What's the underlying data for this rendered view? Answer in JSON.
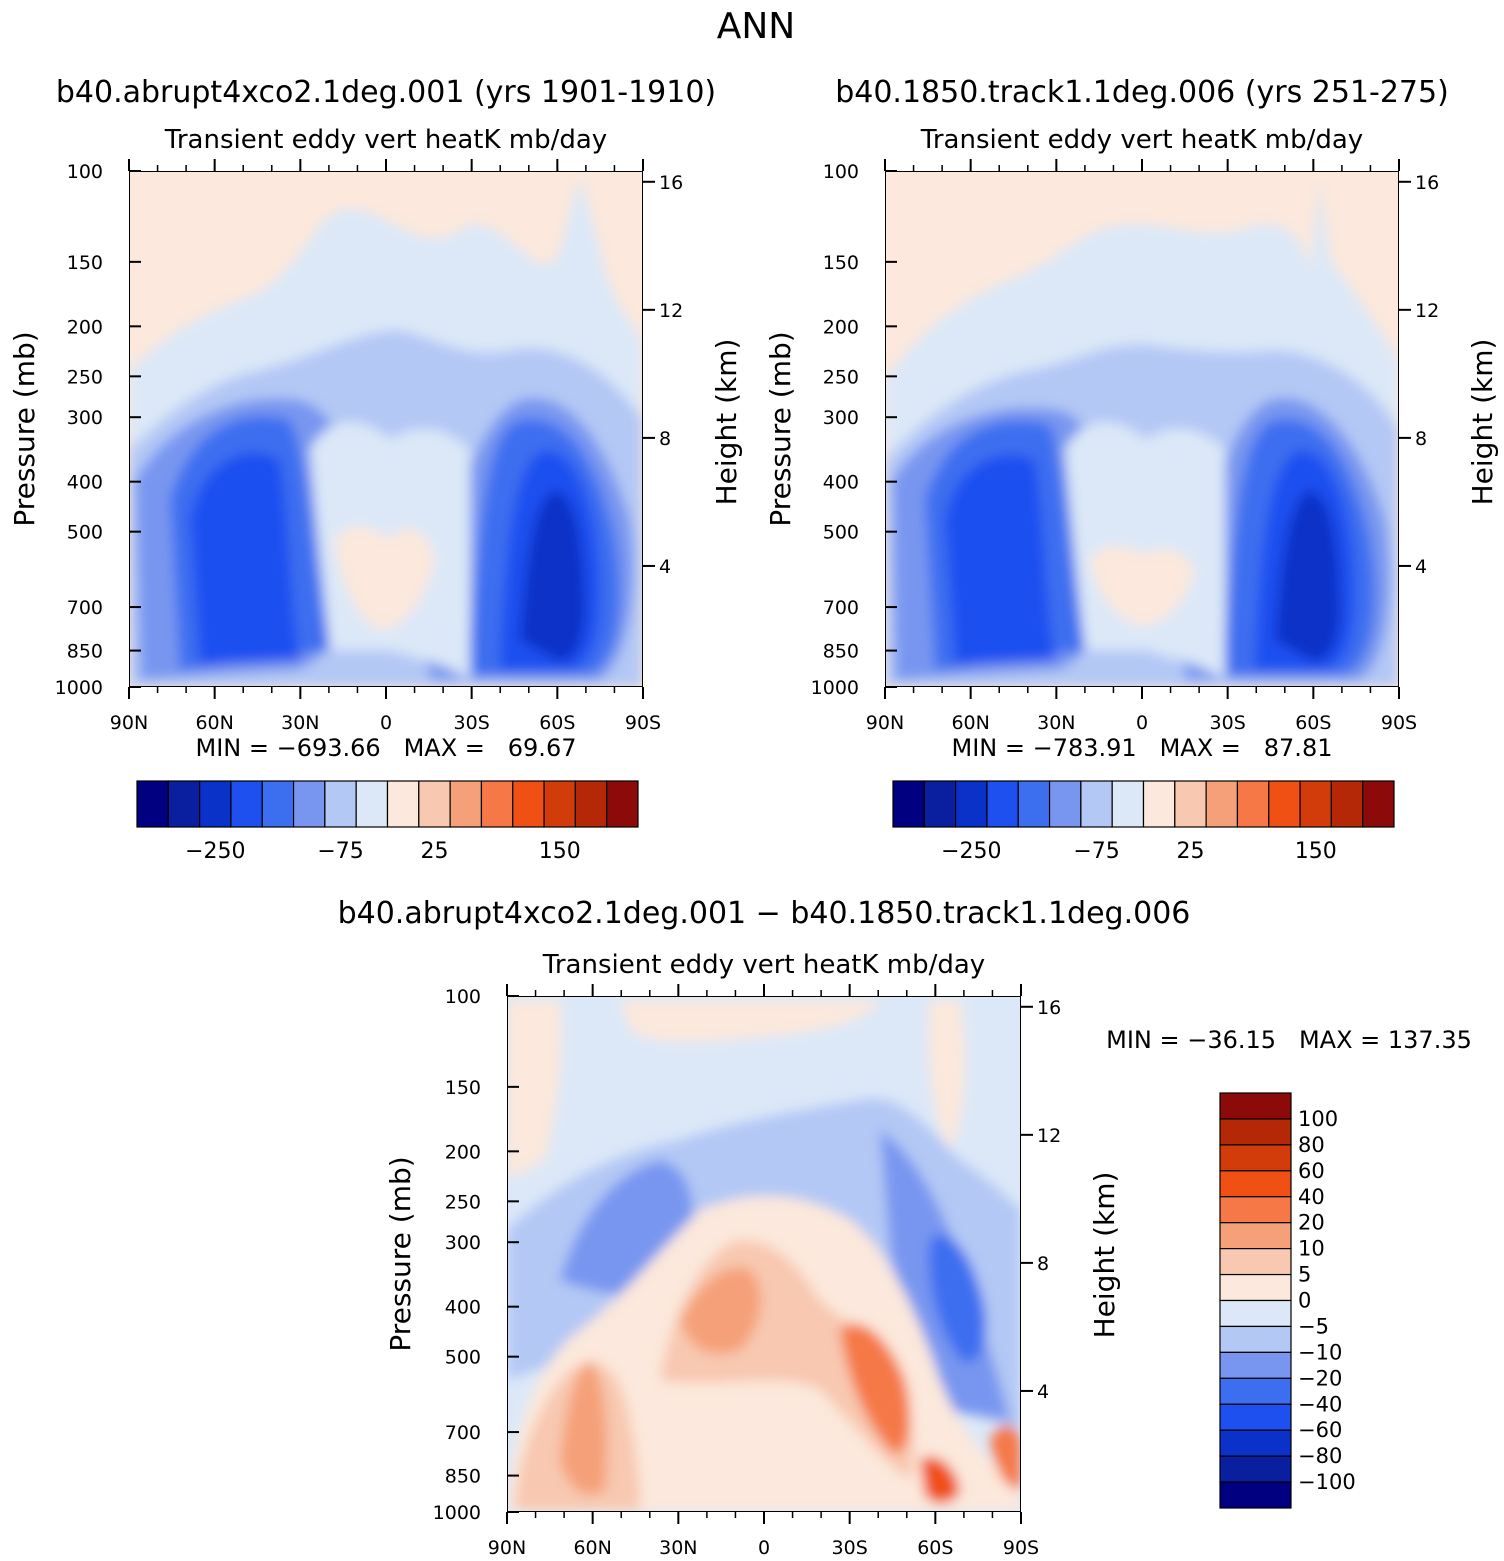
{
  "title": "ANN",
  "panels": [
    {
      "id": "p1",
      "case": "b40.abrupt4xco2.1deg.001 (yrs 1901-1910)",
      "variable": "Transient eddy vert heatK mb/day",
      "stats": "MIN = −693.66   MAX =   69.67",
      "min": -693.66,
      "max": 69.67
    },
    {
      "id": "p2",
      "case": "b40.1850.track1.1deg.006 (yrs 251-275)",
      "variable": "Transient eddy vert heatK mb/day",
      "stats": "MIN = −783.91   MAX =   87.81",
      "min": -783.91,
      "max": 87.81
    },
    {
      "id": "p3",
      "case": "b40.abrupt4xco2.1deg.001 − b40.1850.track1.1deg.006",
      "variable": "Transient eddy vert heatK mb/day",
      "stats": "MIN = −36.15   MAX = 137.35",
      "min": -36.15,
      "max": 137.35
    }
  ],
  "axes": {
    "ylabel": "Pressure (mb)",
    "y2label": "Height (km)",
    "pressure_ticks": [
      "100",
      "150",
      "200",
      "250",
      "300",
      "400",
      "500",
      "700",
      "850",
      "1000"
    ],
    "pressure_values": [
      100,
      150,
      200,
      250,
      300,
      400,
      500,
      700,
      850,
      1000
    ],
    "height_ticks": [
      "16",
      "12",
      "8",
      "4"
    ],
    "height_values": [
      16,
      12,
      8,
      4
    ],
    "lat_ticks": [
      "90N",
      "60N",
      "30N",
      "0",
      "30S",
      "60S",
      "90S"
    ],
    "lat_values": [
      90,
      60,
      30,
      0,
      -30,
      -60,
      -90
    ]
  },
  "colorbar_main": {
    "colors": [
      "#000080",
      "#0A1EA0",
      "#0A32C8",
      "#1E50F0",
      "#3C6EF0",
      "#7896F0",
      "#B4C8F5",
      "#DCE8F8",
      "#FCE8DC",
      "#F8C8B0",
      "#F5A078",
      "#F57846",
      "#F05014",
      "#D23C0A",
      "#B42808",
      "#8C0A0A"
    ],
    "tick_labels": [
      "−250",
      "−75",
      "25",
      "150"
    ],
    "tick_after_box": [
      2,
      6,
      9,
      13
    ]
  },
  "colorbar_diff": {
    "colors": [
      "#8C0A0A",
      "#B42808",
      "#D23C0A",
      "#F05014",
      "#F57846",
      "#F5A078",
      "#F8C8B0",
      "#FCE8DC",
      "#DCE8F8",
      "#B4C8F5",
      "#7896F0",
      "#3C6EF0",
      "#1E50F0",
      "#0A32C8",
      "#0A1EA0",
      "#000080"
    ],
    "labels": [
      "100",
      "80",
      "60",
      "40",
      "20",
      "10",
      "5",
      "0",
      "−5",
      "−10",
      "−20",
      "−40",
      "−60",
      "−80",
      "−100"
    ]
  },
  "chart_data": [
    {
      "type": "heatmap",
      "title": "b40.abrupt4xco2.1deg.001 (yrs 1901-1910)",
      "subtitle": "Transient eddy vert heatK mb/day",
      "xlabel": "",
      "ylabel": "Pressure (mb)",
      "y2label": "Height (km)",
      "x_ticks": [
        "90N",
        "60N",
        "30N",
        "0",
        "30S",
        "60S",
        "90S"
      ],
      "y_ticks": [
        100,
        150,
        200,
        250,
        300,
        400,
        500,
        700,
        850,
        1000
      ],
      "ylim": [
        1000,
        100
      ],
      "min": -693.66,
      "max": 69.67,
      "features": [
        "strong negative maxima near 45N and 55S from 400-850 mb",
        "weak positive above 200 mb poleward",
        "positive near 0-10N around 500-700 mb"
      ]
    },
    {
      "type": "heatmap",
      "title": "b40.1850.track1.1deg.006 (yrs 251-275)",
      "subtitle": "Transient eddy vert heatK mb/day",
      "xlabel": "",
      "ylabel": "Pressure (mb)",
      "y2label": "Height (km)",
      "x_ticks": [
        "90N",
        "60N",
        "30N",
        "0",
        "30S",
        "60S",
        "90S"
      ],
      "y_ticks": [
        100,
        150,
        200,
        250,
        300,
        400,
        500,
        700,
        850,
        1000
      ],
      "ylim": [
        1000,
        100
      ],
      "min": -783.91,
      "max": 87.81
    },
    {
      "type": "heatmap",
      "title": "b40.abrupt4xco2.1deg.001 − b40.1850.track1.1deg.006",
      "subtitle": "Transient eddy vert heatK mb/day",
      "xlabel": "",
      "ylabel": "Pressure (mb)",
      "y2label": "Height (km)",
      "x_ticks": [
        "90N",
        "60N",
        "30N",
        "0",
        "30S",
        "60S",
        "90S"
      ],
      "y_ticks": [
        100,
        150,
        200,
        250,
        300,
        400,
        500,
        700,
        850,
        1000
      ],
      "ylim": [
        1000,
        100
      ],
      "min": -36.15,
      "max": 137.35,
      "colorbar_levels": [
        100,
        80,
        60,
        40,
        20,
        10,
        5,
        0,
        -5,
        -10,
        -20,
        -40,
        -60,
        -80,
        -100
      ]
    }
  ]
}
